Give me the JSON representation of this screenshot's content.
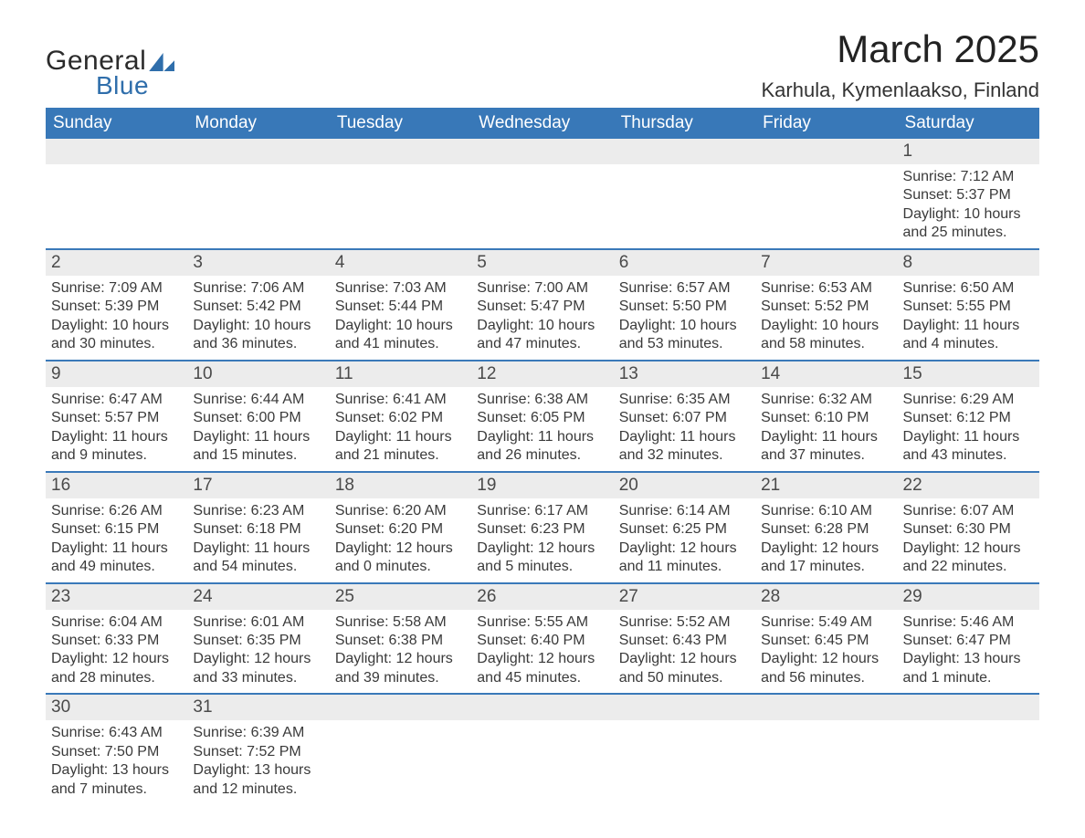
{
  "logo": {
    "text1": "General",
    "text2": "Blue"
  },
  "title": {
    "month": "March 2025",
    "location": "Karhula, Kymenlaakso, Finland"
  },
  "colors": {
    "header_bg": "#3878b8",
    "header_text": "#ffffff",
    "daynum_bg": "#ececec",
    "row_border": "#3a79b9",
    "body_text": "#333333",
    "logo_blue": "#2f6eab"
  },
  "days_of_week": [
    "Sunday",
    "Monday",
    "Tuesday",
    "Wednesday",
    "Thursday",
    "Friday",
    "Saturday"
  ],
  "weeks": [
    {
      "nums": [
        "",
        "",
        "",
        "",
        "",
        "",
        "1"
      ],
      "details": [
        "",
        "",
        "",
        "",
        "",
        "",
        "Sunrise: 7:12 AM\nSunset: 5:37 PM\nDaylight: 10 hours and 25 minutes."
      ]
    },
    {
      "nums": [
        "2",
        "3",
        "4",
        "5",
        "6",
        "7",
        "8"
      ],
      "details": [
        "Sunrise: 7:09 AM\nSunset: 5:39 PM\nDaylight: 10 hours and 30 minutes.",
        "Sunrise: 7:06 AM\nSunset: 5:42 PM\nDaylight: 10 hours and 36 minutes.",
        "Sunrise: 7:03 AM\nSunset: 5:44 PM\nDaylight: 10 hours and 41 minutes.",
        "Sunrise: 7:00 AM\nSunset: 5:47 PM\nDaylight: 10 hours and 47 minutes.",
        "Sunrise: 6:57 AM\nSunset: 5:50 PM\nDaylight: 10 hours and 53 minutes.",
        "Sunrise: 6:53 AM\nSunset: 5:52 PM\nDaylight: 10 hours and 58 minutes.",
        "Sunrise: 6:50 AM\nSunset: 5:55 PM\nDaylight: 11 hours and 4 minutes."
      ]
    },
    {
      "nums": [
        "9",
        "10",
        "11",
        "12",
        "13",
        "14",
        "15"
      ],
      "details": [
        "Sunrise: 6:47 AM\nSunset: 5:57 PM\nDaylight: 11 hours and 9 minutes.",
        "Sunrise: 6:44 AM\nSunset: 6:00 PM\nDaylight: 11 hours and 15 minutes.",
        "Sunrise: 6:41 AM\nSunset: 6:02 PM\nDaylight: 11 hours and 21 minutes.",
        "Sunrise: 6:38 AM\nSunset: 6:05 PM\nDaylight: 11 hours and 26 minutes.",
        "Sunrise: 6:35 AM\nSunset: 6:07 PM\nDaylight: 11 hours and 32 minutes.",
        "Sunrise: 6:32 AM\nSunset: 6:10 PM\nDaylight: 11 hours and 37 minutes.",
        "Sunrise: 6:29 AM\nSunset: 6:12 PM\nDaylight: 11 hours and 43 minutes."
      ]
    },
    {
      "nums": [
        "16",
        "17",
        "18",
        "19",
        "20",
        "21",
        "22"
      ],
      "details": [
        "Sunrise: 6:26 AM\nSunset: 6:15 PM\nDaylight: 11 hours and 49 minutes.",
        "Sunrise: 6:23 AM\nSunset: 6:18 PM\nDaylight: 11 hours and 54 minutes.",
        "Sunrise: 6:20 AM\nSunset: 6:20 PM\nDaylight: 12 hours and 0 minutes.",
        "Sunrise: 6:17 AM\nSunset: 6:23 PM\nDaylight: 12 hours and 5 minutes.",
        "Sunrise: 6:14 AM\nSunset: 6:25 PM\nDaylight: 12 hours and 11 minutes.",
        "Sunrise: 6:10 AM\nSunset: 6:28 PM\nDaylight: 12 hours and 17 minutes.",
        "Sunrise: 6:07 AM\nSunset: 6:30 PM\nDaylight: 12 hours and 22 minutes."
      ]
    },
    {
      "nums": [
        "23",
        "24",
        "25",
        "26",
        "27",
        "28",
        "29"
      ],
      "details": [
        "Sunrise: 6:04 AM\nSunset: 6:33 PM\nDaylight: 12 hours and 28 minutes.",
        "Sunrise: 6:01 AM\nSunset: 6:35 PM\nDaylight: 12 hours and 33 minutes.",
        "Sunrise: 5:58 AM\nSunset: 6:38 PM\nDaylight: 12 hours and 39 minutes.",
        "Sunrise: 5:55 AM\nSunset: 6:40 PM\nDaylight: 12 hours and 45 minutes.",
        "Sunrise: 5:52 AM\nSunset: 6:43 PM\nDaylight: 12 hours and 50 minutes.",
        "Sunrise: 5:49 AM\nSunset: 6:45 PM\nDaylight: 12 hours and 56 minutes.",
        "Sunrise: 5:46 AM\nSunset: 6:47 PM\nDaylight: 13 hours and 1 minute."
      ]
    },
    {
      "nums": [
        "30",
        "31",
        "",
        "",
        "",
        "",
        ""
      ],
      "details": [
        "Sunrise: 6:43 AM\nSunset: 7:50 PM\nDaylight: 13 hours and 7 minutes.",
        "Sunrise: 6:39 AM\nSunset: 7:52 PM\nDaylight: 13 hours and 12 minutes.",
        "",
        "",
        "",
        "",
        ""
      ]
    }
  ]
}
